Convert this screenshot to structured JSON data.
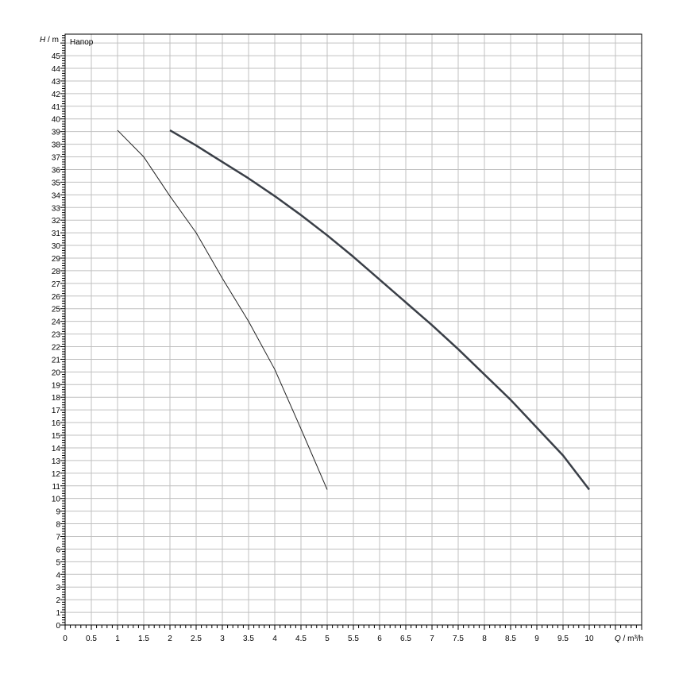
{
  "chart_data": {
    "type": "line",
    "title": "",
    "ylabel_symbol": "H",
    "ylabel_unit": " / m",
    "xlabel_symbol": "Q",
    "xlabel_unit": " / m³/h",
    "series_label": "Напор",
    "xlim": [
      0,
      11
    ],
    "ylim": [
      0,
      46.7
    ],
    "x_ticks": [
      0,
      0.5,
      1,
      1.5,
      2,
      2.5,
      3,
      3.5,
      4,
      4.5,
      5,
      5.5,
      6,
      6.5,
      7,
      7.5,
      8,
      8.5,
      9,
      9.5,
      10
    ],
    "y_ticks": [
      0,
      1,
      2,
      3,
      4,
      5,
      6,
      7,
      8,
      9,
      10,
      11,
      12,
      13,
      14,
      15,
      16,
      17,
      18,
      19,
      20,
      21,
      22,
      23,
      24,
      25,
      26,
      27,
      28,
      29,
      30,
      31,
      32,
      33,
      34,
      35,
      36,
      37,
      38,
      39,
      40,
      41,
      42,
      43,
      44,
      45
    ],
    "grid": true,
    "series": [
      {
        "x": [
          1,
          1.5,
          2,
          2.5,
          3,
          3.5,
          4,
          4.5,
          5
        ],
        "y": [
          39.1,
          37.0,
          33.9,
          31.0,
          27.4,
          24.0,
          20.2,
          15.5,
          10.7
        ],
        "color": "#222222",
        "width": 1
      },
      {
        "x": [
          2,
          2.5,
          3,
          3.5,
          4,
          4.5,
          5,
          5.5,
          6,
          6.5,
          7,
          7.5,
          8,
          8.5,
          9,
          9.5,
          10
        ],
        "y": [
          39.1,
          37.9,
          36.6,
          35.3,
          33.9,
          32.4,
          30.8,
          29.1,
          27.3,
          25.5,
          23.7,
          21.8,
          19.8,
          17.8,
          15.6,
          13.4,
          10.7
        ],
        "color": "#3a3f47",
        "width": 2.5
      }
    ]
  }
}
